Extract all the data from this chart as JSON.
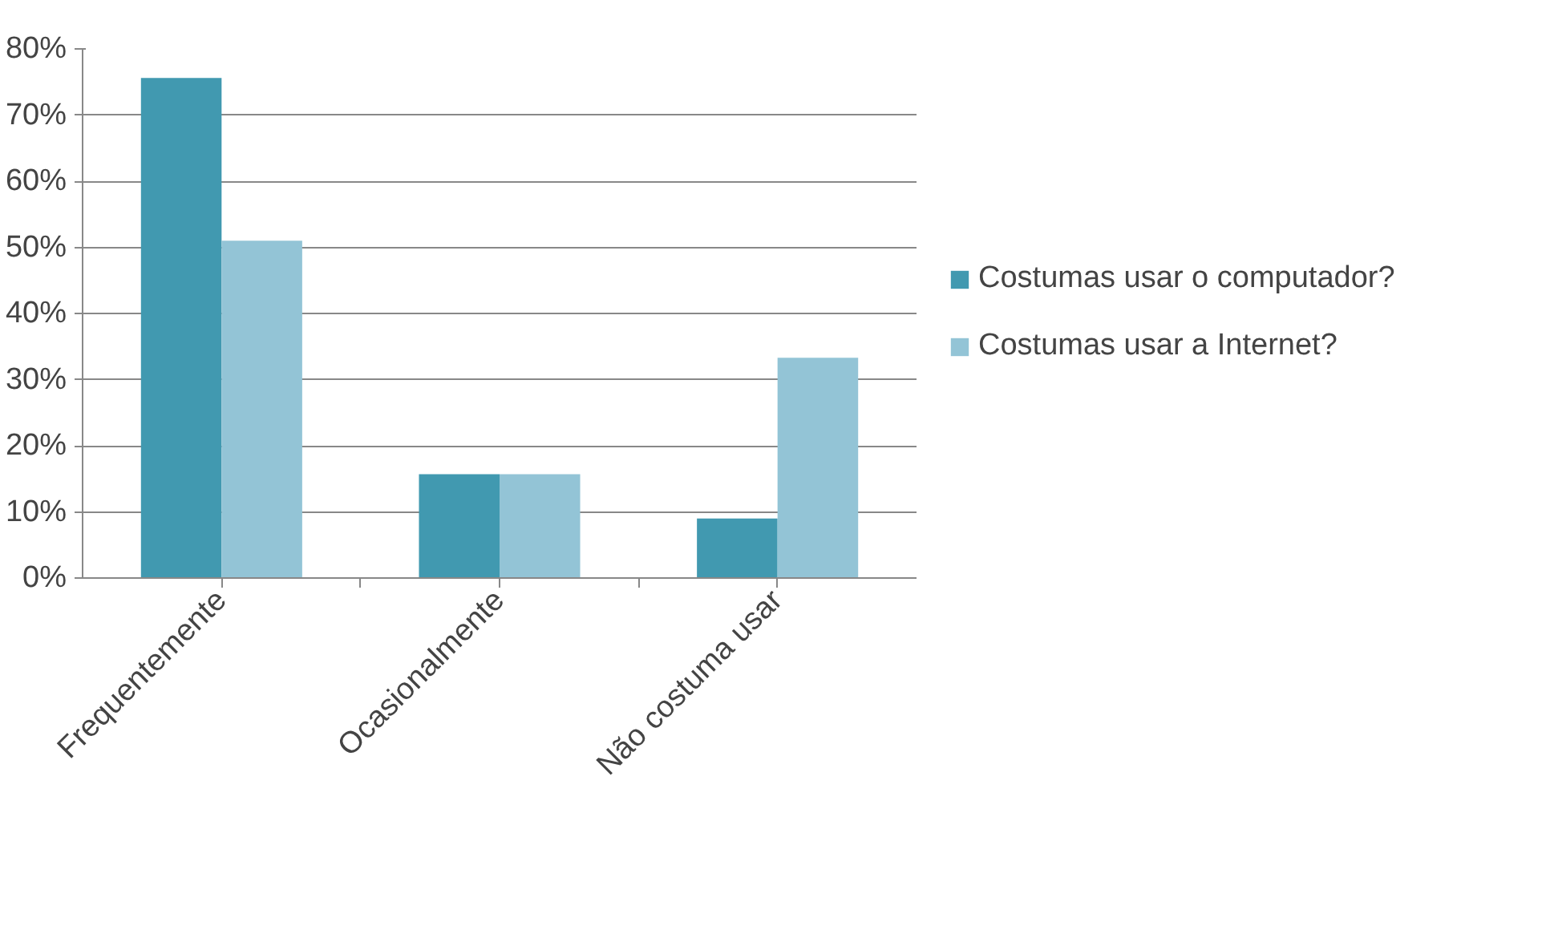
{
  "chart_data": {
    "type": "bar",
    "categories": [
      "Frequentemente",
      "Ocasionalmente",
      "Não costuma usar"
    ],
    "series": [
      {
        "name": "Costumas usar o computador?",
        "color": "#4199b0",
        "values": [
          75.6,
          15.7,
          9
        ]
      },
      {
        "name": "Costumas usar a Internet?",
        "color": "#93c4d6",
        "values": [
          51,
          15.7,
          33.3
        ]
      }
    ],
    "ylim": [
      0,
      80
    ],
    "yticks": [
      {
        "value": 0,
        "label": "0%"
      },
      {
        "value": 10,
        "label": "10%"
      },
      {
        "value": 20,
        "label": "20%"
      },
      {
        "value": 30,
        "label": "30%"
      },
      {
        "value": 40,
        "label": "40%"
      },
      {
        "value": 50,
        "label": "50%"
      },
      {
        "value": 60,
        "label": "60%"
      },
      {
        "value": 70,
        "label": "70%"
      },
      {
        "value": 80,
        "label": "80%"
      }
    ],
    "grid": "y",
    "legend": "right"
  }
}
